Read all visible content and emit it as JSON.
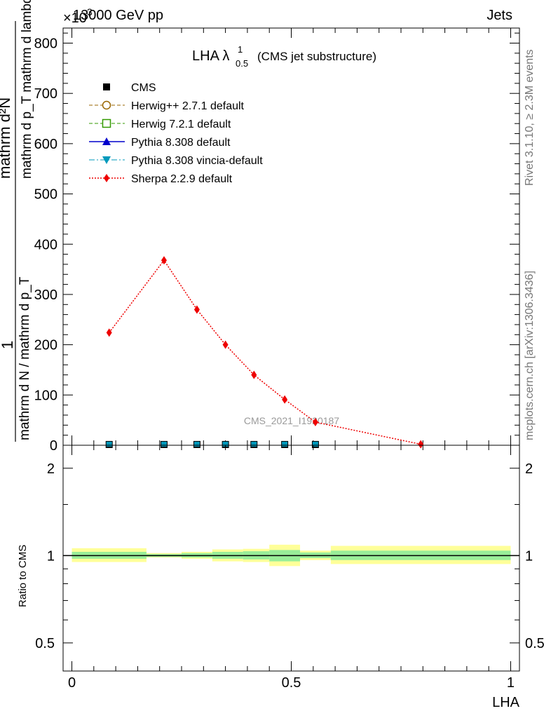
{
  "header": {
    "left_label": "13000 GeV pp",
    "right_label": "Jets",
    "exponent_label": "×10",
    "exponent_power": "3"
  },
  "side_labels": {
    "rivet": "Rivet 3.1.10, ≥ 2.3M events",
    "mcplots": "mcplots.cern.ch [arXiv:1306.3436]"
  },
  "chart_data": [
    {
      "type": "line",
      "title": "LHA λ",
      "title_sup": "1",
      "title_sub": "0.5",
      "title_suffix": "(CMS jet substructure)",
      "watermark": "CMS_2021_I1920187",
      "ylabel": {
        "num_top": "mathrm d²N",
        "num_bottom": "mathrm d p_T mathrm d lambda",
        "mid_left": "1",
        "den": "mathrm d N / mathrm d p_T",
        "full_num": "mathrm d N",
        "pt_sub": "T"
      },
      "ylim": [
        0,
        830
      ],
      "yticks": [
        0,
        100,
        200,
        300,
        400,
        500,
        600,
        700,
        800
      ],
      "ytick_labels": [
        "0",
        "100",
        "200",
        "300",
        "400",
        "500",
        "600",
        "700",
        "800"
      ],
      "xlim": [
        -0.02,
        1.02
      ],
      "legend": [
        {
          "name": "CMS",
          "style": "cms"
        },
        {
          "name": "Herwig++ 2.7.1 default",
          "style": "herwigpp"
        },
        {
          "name": "Herwig 7.2.1 default",
          "style": "herwig7"
        },
        {
          "name": "Pythia 8.308 default",
          "style": "pythia"
        },
        {
          "name": "Pythia 8.308 vincia-default",
          "style": "vincia"
        },
        {
          "name": "Sherpa 2.2.9 default",
          "style": "sherpa"
        }
      ],
      "series": [
        {
          "name": "CMS",
          "x": [
            0.085,
            0.21,
            0.285,
            0.35,
            0.415,
            0.485,
            0.555
          ],
          "y": [
            1.5,
            1.5,
            1.5,
            1.5,
            1.5,
            1.5,
            1.5
          ]
        },
        {
          "name": "Sherpa 2.2.9 default",
          "x": [
            0.085,
            0.21,
            0.285,
            0.35,
            0.415,
            0.485,
            0.555,
            0.795
          ],
          "y": [
            224,
            368,
            270,
            200,
            140,
            91,
            46,
            2
          ]
        }
      ],
      "colors": {
        "sherpa": "#ee0000",
        "herwigpp": "#996600",
        "herwig7": "#339900",
        "pythia": "#0000cc",
        "vincia": "#0099bb",
        "cms": "#000000"
      }
    },
    {
      "type": "area",
      "ylabel": "Ratio to CMS",
      "xlabel": "LHA",
      "ylim": [
        0.4,
        2.4
      ],
      "log_y": true,
      "yticks": [
        0.5,
        1,
        2
      ],
      "ytick_labels": [
        "0.5",
        "1",
        "2"
      ],
      "xticks": [
        0,
        0.5,
        1
      ],
      "xtick_labels": [
        "0",
        "0.5",
        "1"
      ],
      "xlim": [
        -0.02,
        1.02
      ],
      "bands": [
        {
          "x0": 0.0,
          "x1": 0.17,
          "inner": [
            0.975,
            1.03
          ],
          "outer": [
            0.95,
            1.06
          ]
        },
        {
          "x0": 0.17,
          "x1": 0.25,
          "inner": [
            0.99,
            1.012
          ],
          "outer": [
            0.985,
            1.02
          ]
        },
        {
          "x0": 0.25,
          "x1": 0.32,
          "inner": [
            0.985,
            1.02
          ],
          "outer": [
            0.975,
            1.03
          ]
        },
        {
          "x0": 0.32,
          "x1": 0.39,
          "inner": [
            0.975,
            1.03
          ],
          "outer": [
            0.955,
            1.05
          ]
        },
        {
          "x0": 0.39,
          "x1": 0.45,
          "inner": [
            0.97,
            1.035
          ],
          "outer": [
            0.95,
            1.055
          ]
        },
        {
          "x0": 0.45,
          "x1": 0.52,
          "inner": [
            0.955,
            1.045
          ],
          "outer": [
            0.92,
            1.09
          ]
        },
        {
          "x0": 0.52,
          "x1": 0.59,
          "inner": [
            0.98,
            1.025
          ],
          "outer": [
            0.965,
            1.04
          ]
        },
        {
          "x0": 0.59,
          "x1": 1.0,
          "inner": [
            0.965,
            1.04
          ],
          "outer": [
            0.935,
            1.08
          ]
        }
      ],
      "colors": {
        "inner": "#99ee99",
        "outer": "#ffff99"
      }
    }
  ]
}
